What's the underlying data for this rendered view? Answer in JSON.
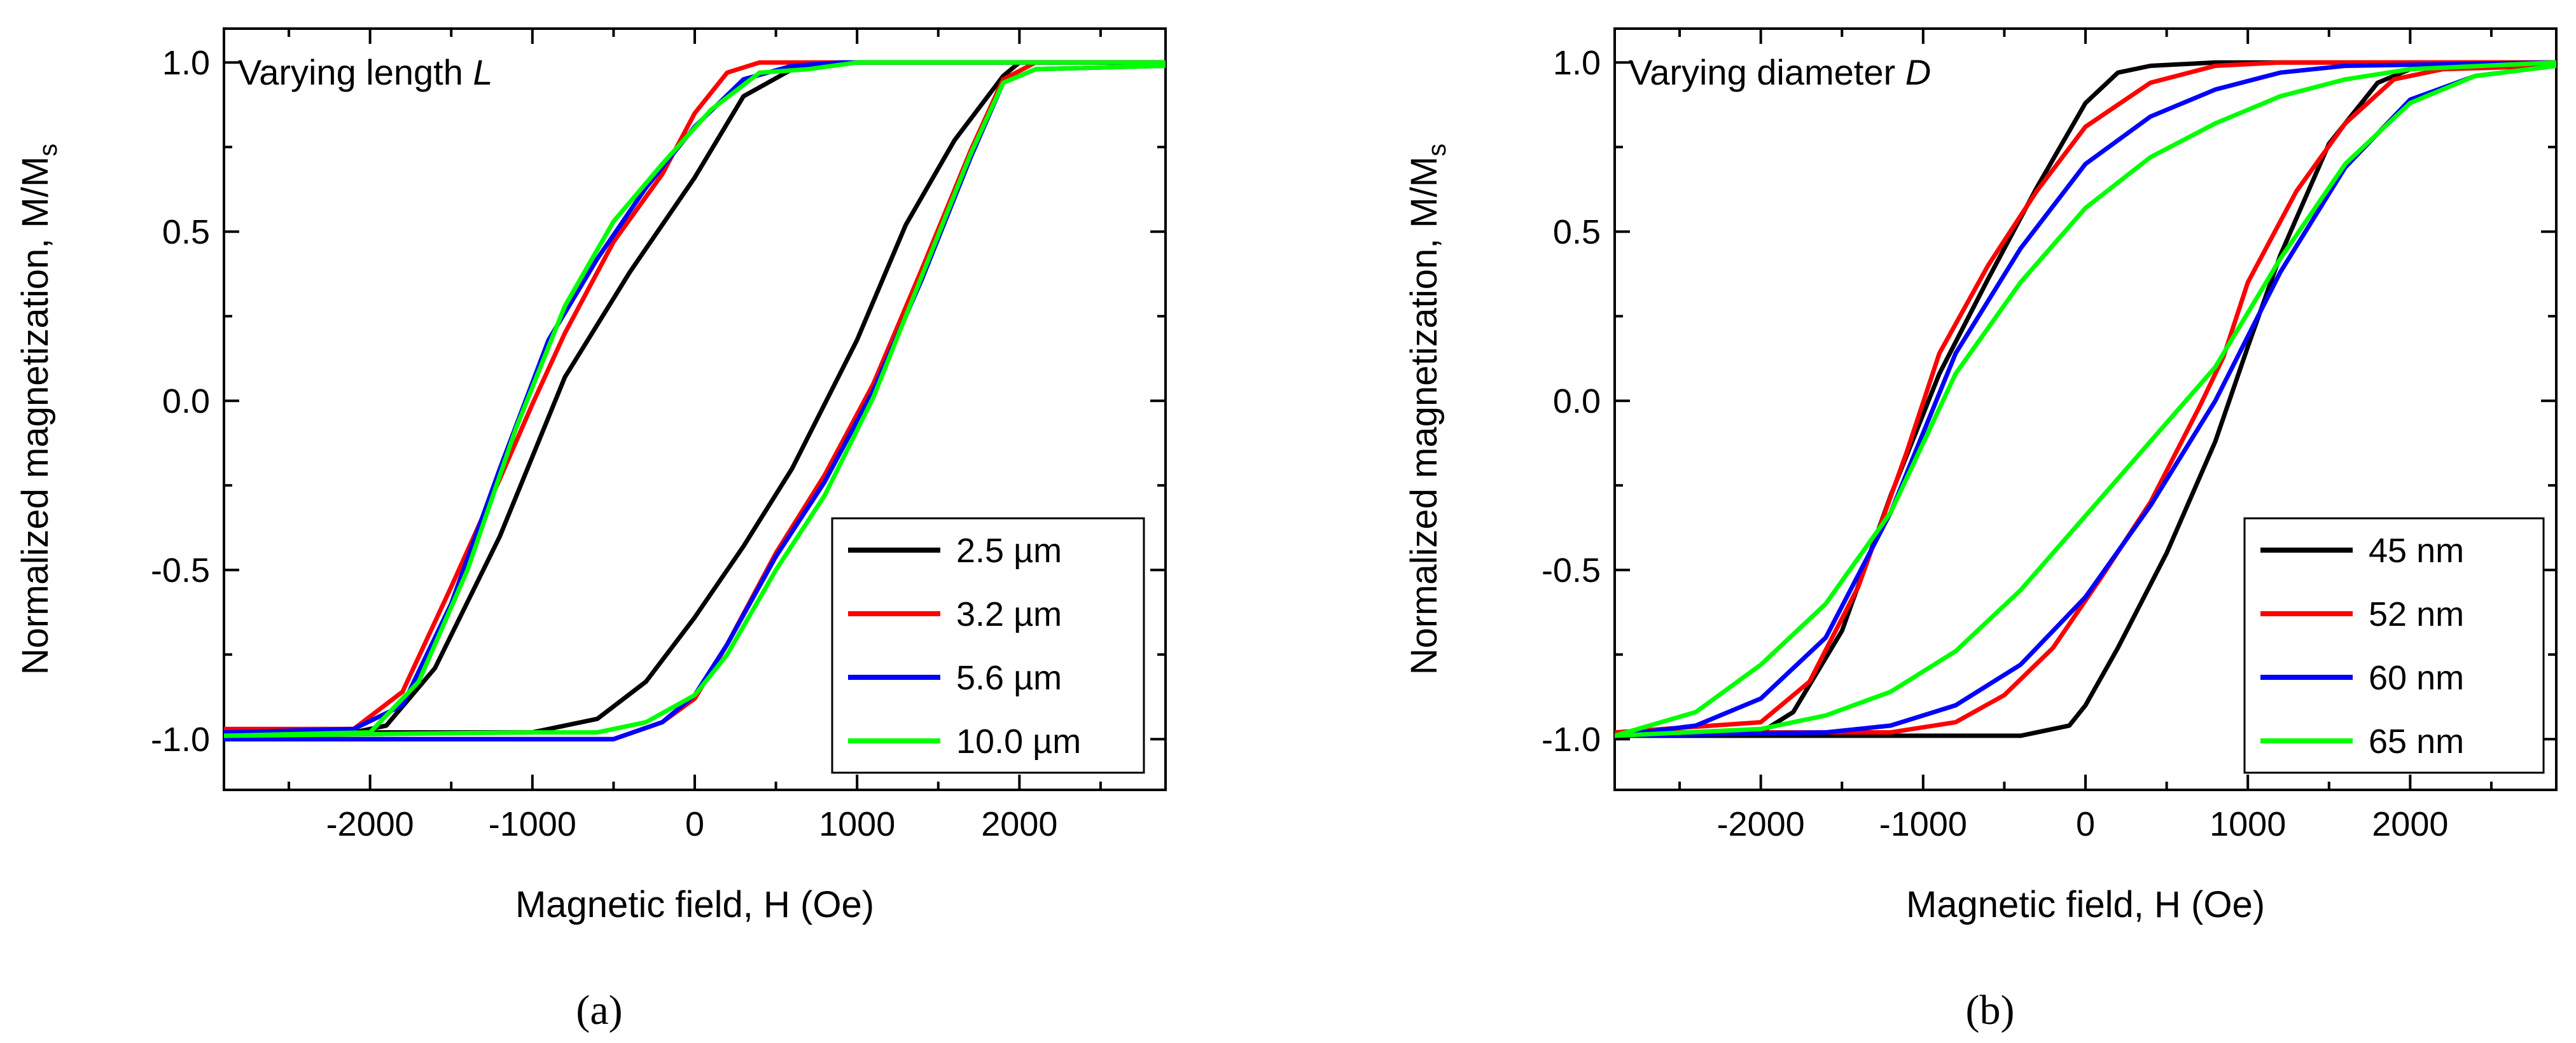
{
  "chart_data": [
    {
      "type": "line",
      "panel_label": "(a)",
      "title": "",
      "annotation": "Varying length ",
      "annotation_var": "L",
      "xlabel": "Magnetic field, H (Oe)",
      "ylabel": "Normalized magnetization, M/M",
      "ylabel_sub": "s",
      "xlim": [
        -2900,
        2900
      ],
      "ylim": [
        -1.15,
        1.1
      ],
      "xticks": [
        -2000,
        -1000,
        0,
        1000,
        2000
      ],
      "xtick_labels": [
        "-2000",
        "-1000",
        "0",
        "1000",
        "2000"
      ],
      "yticks": [
        -1.0,
        -0.5,
        0.0,
        0.5,
        1.0
      ],
      "ytick_labels": [
        "-1.0",
        "-0.5",
        "0.0",
        "0.5",
        "1.0"
      ],
      "legend_position": "bottom-right",
      "series": [
        {
          "name": "2.5 µm",
          "color": "#000000",
          "descending": {
            "x": [
              2900,
              2000,
              1000,
              600,
              300,
              0,
              -400,
              -800,
              -1200,
              -1600,
              -1900,
              -2100,
              -2900
            ],
            "y": [
              1.0,
              1.0,
              1.0,
              0.98,
              0.9,
              0.66,
              0.38,
              0.07,
              -0.4,
              -0.79,
              -0.96,
              -0.98,
              -0.98
            ]
          },
          "ascending": {
            "x": [
              -2900,
              -1000,
              -600,
              -300,
              0,
              300,
              600,
              1000,
              1300,
              1600,
              1900,
              2000,
              2900
            ],
            "y": [
              -0.98,
              -0.98,
              -0.94,
              -0.83,
              -0.64,
              -0.43,
              -0.2,
              0.18,
              0.52,
              0.77,
              0.96,
              1.0,
              1.0
            ]
          }
        },
        {
          "name": "3.2 µm",
          "color": "#ff0000",
          "descending": {
            "x": [
              2900,
              1000,
              400,
              200,
              0,
              -200,
              -500,
              -800,
              -1000,
              -1200,
              -1500,
              -1800,
              -2100,
              -2900
            ],
            "y": [
              1.0,
              1.0,
              1.0,
              0.97,
              0.85,
              0.67,
              0.47,
              0.2,
              -0.01,
              -0.23,
              -0.55,
              -0.86,
              -0.97,
              -0.97
            ]
          },
          "ascending": {
            "x": [
              -2900,
              -500,
              -200,
              0,
              200,
              500,
              800,
              1100,
              1400,
              1700,
              1900,
              2100,
              2900
            ],
            "y": [
              -1.0,
              -1.0,
              -0.95,
              -0.88,
              -0.72,
              -0.45,
              -0.22,
              0.05,
              0.39,
              0.74,
              0.95,
              1.0,
              1.0
            ]
          }
        },
        {
          "name": "5.6 µm",
          "color": "#0000ff",
          "descending": {
            "x": [
              2900,
              900,
              600,
              300,
              0,
              -300,
              -600,
              -900,
              -1200,
              -1500,
              -1800,
              -2100,
              -2900
            ],
            "y": [
              1.0,
              1.0,
              0.99,
              0.95,
              0.81,
              0.63,
              0.42,
              0.18,
              -0.2,
              -0.6,
              -0.9,
              -0.97,
              -0.98
            ]
          },
          "ascending": {
            "x": [
              -2900,
              -500,
              -200,
              0,
              200,
              500,
              800,
              1100,
              1400,
              1700,
              1900,
              2100,
              2900
            ],
            "y": [
              -1.0,
              -1.0,
              -0.95,
              -0.87,
              -0.72,
              -0.46,
              -0.24,
              0.03,
              0.36,
              0.72,
              0.94,
              0.98,
              0.99
            ]
          }
        },
        {
          "name": "10.0 µm",
          "color": "#00ff00",
          "descending": {
            "x": [
              2900,
              1000,
              700,
              400,
              100,
              -200,
              -500,
              -800,
              -1100,
              -1400,
              -1700,
              -2000,
              -2900
            ],
            "y": [
              1.0,
              1.0,
              0.98,
              0.97,
              0.86,
              0.7,
              0.53,
              0.28,
              -0.08,
              -0.5,
              -0.83,
              -0.98,
              -0.99
            ]
          },
          "ascending": {
            "x": [
              -2900,
              -1000,
              -600,
              -300,
              0,
              200,
              500,
              800,
              1100,
              1400,
              1700,
              1900,
              2100,
              2900
            ],
            "y": [
              -0.99,
              -0.98,
              -0.98,
              -0.95,
              -0.87,
              -0.75,
              -0.5,
              -0.28,
              0.01,
              0.37,
              0.73,
              0.94,
              0.98,
              0.99
            ]
          }
        }
      ]
    },
    {
      "type": "line",
      "panel_label": "(b)",
      "title": "",
      "annotation": "Varying diameter ",
      "annotation_var": "D",
      "xlabel": "Magnetic field, H (Oe)",
      "ylabel": "Normalized magnetization, M/M",
      "ylabel_sub": "s",
      "xlim": [
        -2900,
        2900
      ],
      "ylim": [
        -1.15,
        1.1
      ],
      "xticks": [
        -2000,
        -1000,
        0,
        1000,
        2000
      ],
      "xtick_labels": [
        "-2000",
        "-1000",
        "0",
        "1000",
        "2000"
      ],
      "yticks": [
        -1.0,
        -0.5,
        0.0,
        0.5,
        1.0
      ],
      "ytick_labels": [
        "-1.0",
        "-0.5",
        "0.0",
        "0.5",
        "1.0"
      ],
      "legend_position": "bottom-right",
      "series": [
        {
          "name": "45 nm",
          "color": "#000000",
          "descending": {
            "x": [
              2900,
              800,
              400,
              200,
              0,
              -300,
              -600,
              -900,
              -1200,
              -1500,
              -1800,
              -2000,
              -2900
            ],
            "y": [
              1.0,
              1.0,
              0.99,
              0.97,
              0.88,
              0.63,
              0.36,
              0.08,
              -0.28,
              -0.68,
              -0.92,
              -0.98,
              -0.99
            ]
          },
          "ascending": {
            "x": [
              -2900,
              -400,
              -100,
              0,
              200,
              500,
              800,
              1000,
              1200,
              1500,
              1800,
              2000,
              2200,
              2900
            ],
            "y": [
              -0.99,
              -0.99,
              -0.96,
              -0.9,
              -0.73,
              -0.45,
              -0.12,
              0.16,
              0.43,
              0.76,
              0.94,
              0.98,
              0.99,
              0.99
            ]
          }
        },
        {
          "name": "52 nm",
          "color": "#ff0000",
          "descending": {
            "x": [
              2900,
              1200,
              800,
              400,
              0,
              -300,
              -600,
              -900,
              -1100,
              -1400,
              -1700,
              -2000,
              -2900
            ],
            "y": [
              1.0,
              1.0,
              0.99,
              0.94,
              0.81,
              0.62,
              0.4,
              0.14,
              -0.15,
              -0.55,
              -0.83,
              -0.95,
              -0.98
            ]
          },
          "ascending": {
            "x": [
              -2900,
              -1200,
              -800,
              -500,
              -200,
              100,
              400,
              700,
              850,
              1000,
              1300,
              1600,
              1900,
              2200,
              2900
            ],
            "y": [
              -0.98,
              -0.98,
              -0.95,
              -0.87,
              -0.73,
              -0.52,
              -0.3,
              -0.02,
              0.13,
              0.35,
              0.62,
              0.82,
              0.95,
              0.98,
              0.99
            ]
          }
        },
        {
          "name": "60 nm",
          "color": "#0000ff",
          "descending": {
            "x": [
              2900,
              1600,
              1200,
              800,
              400,
              0,
              -400,
              -800,
              -1200,
              -1600,
              -2000,
              -2400,
              -2900
            ],
            "y": [
              1.0,
              0.99,
              0.97,
              0.92,
              0.84,
              0.7,
              0.45,
              0.14,
              -0.33,
              -0.7,
              -0.88,
              -0.96,
              -0.99
            ]
          },
          "ascending": {
            "x": [
              -2900,
              -1600,
              -1200,
              -800,
              -400,
              0,
              400,
              800,
              1200,
              1600,
              2000,
              2400,
              2900
            ],
            "y": [
              -0.99,
              -0.98,
              -0.96,
              -0.9,
              -0.78,
              -0.58,
              -0.31,
              0.0,
              0.38,
              0.69,
              0.89,
              0.96,
              0.99
            ]
          }
        },
        {
          "name": "65 nm",
          "color": "#00ff00",
          "descending": {
            "x": [
              2900,
              2000,
              1600,
              1200,
              800,
              400,
              0,
              -400,
              -800,
              -1200,
              -1600,
              -2000,
              -2400,
              -2900
            ],
            "y": [
              1.0,
              0.98,
              0.95,
              0.9,
              0.82,
              0.72,
              0.57,
              0.35,
              0.08,
              -0.33,
              -0.6,
              -0.78,
              -0.92,
              -0.99
            ]
          },
          "ascending": {
            "x": [
              -2900,
              -2000,
              -1600,
              -1200,
              -800,
              -400,
              0,
              400,
              800,
              1200,
              1600,
              2000,
              2400,
              2900
            ],
            "y": [
              -0.99,
              -0.97,
              -0.93,
              -0.86,
              -0.74,
              -0.56,
              -0.34,
              -0.12,
              0.1,
              0.42,
              0.7,
              0.88,
              0.96,
              0.99
            ]
          }
        }
      ]
    }
  ]
}
